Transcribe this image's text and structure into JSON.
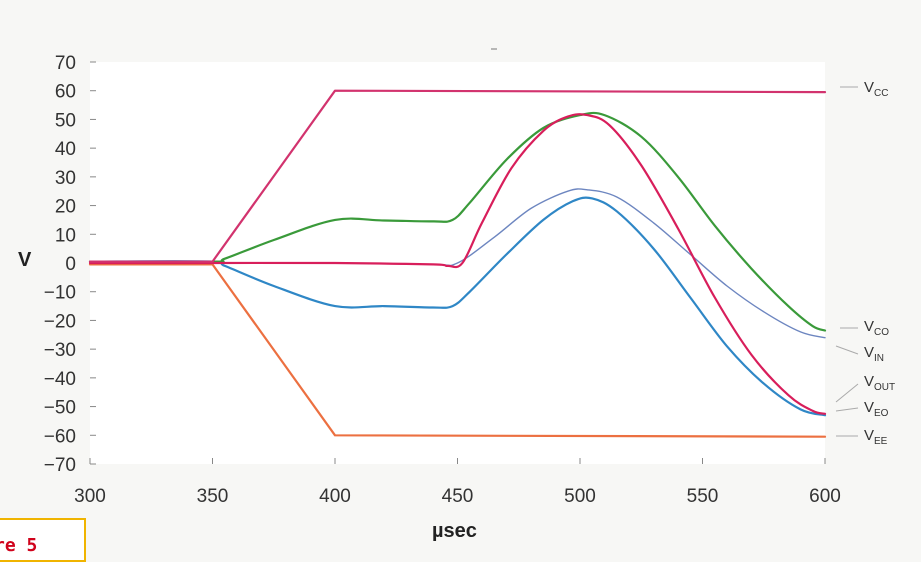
{
  "chart_data": {
    "type": "line",
    "title": "",
    "xlabel": "µsec",
    "ylabel": "V",
    "xlim": [
      300,
      600
    ],
    "ylim": [
      -70,
      70
    ],
    "x_ticks": [
      "300",
      "350",
      "400",
      "450",
      "500",
      "550",
      "600"
    ],
    "y_ticks": [
      "70",
      "60",
      "50",
      "40",
      "30",
      "20",
      "10",
      "0",
      "−10",
      "−20",
      "−30",
      "−40",
      "−50",
      "−60",
      "−70"
    ],
    "grid": false,
    "legend": "right, inline labels",
    "series": [
      {
        "name": "VCC",
        "label_main": "V",
        "label_sub": "CC",
        "color": "#d2336e",
        "points": [
          [
            300,
            0.5
          ],
          [
            350,
            0.5
          ],
          [
            400,
            60
          ],
          [
            600,
            59.5
          ]
        ]
      },
      {
        "name": "VCO",
        "label_main": "V",
        "label_sub": "CO",
        "color": "#3a9a3a",
        "points": [
          [
            300,
            0.5
          ],
          [
            350,
            0.5
          ],
          [
            355,
            1.5
          ],
          [
            375,
            8
          ],
          [
            400,
            15
          ],
          [
            420,
            14.8
          ],
          [
            440,
            14.5
          ],
          [
            448,
            15
          ],
          [
            455,
            21
          ],
          [
            470,
            36
          ],
          [
            485,
            47
          ],
          [
            500,
            51.5
          ],
          [
            510,
            51.5
          ],
          [
            525,
            44
          ],
          [
            540,
            30
          ],
          [
            555,
            13
          ],
          [
            570,
            -2
          ],
          [
            585,
            -15
          ],
          [
            595,
            -22
          ],
          [
            600,
            -23.5
          ]
        ]
      },
      {
        "name": "VIN",
        "label_main": "V",
        "label_sub": "IN",
        "color": "#6d86c0",
        "points": [
          [
            300,
            0.5
          ],
          [
            350,
            0
          ],
          [
            400,
            0
          ],
          [
            440,
            -0.5
          ],
          [
            450,
            0
          ],
          [
            465,
            9
          ],
          [
            480,
            19
          ],
          [
            495,
            25
          ],
          [
            503,
            25.5
          ],
          [
            515,
            23
          ],
          [
            530,
            14
          ],
          [
            545,
            3
          ],
          [
            560,
            -8
          ],
          [
            575,
            -17
          ],
          [
            590,
            -24
          ],
          [
            600,
            -26
          ]
        ]
      },
      {
        "name": "VOUT",
        "label_main": "V",
        "label_sub": "OUT",
        "color": "#d81e5b",
        "points": [
          [
            300,
            0
          ],
          [
            350,
            0
          ],
          [
            400,
            0
          ],
          [
            440,
            -0.5
          ],
          [
            446,
            -1
          ],
          [
            452,
            0
          ],
          [
            460,
            14
          ],
          [
            472,
            33
          ],
          [
            485,
            46
          ],
          [
            495,
            51
          ],
          [
            503,
            51.5
          ],
          [
            512,
            48
          ],
          [
            525,
            34
          ],
          [
            540,
            12
          ],
          [
            555,
            -12
          ],
          [
            570,
            -32
          ],
          [
            585,
            -46
          ],
          [
            595,
            -51.5
          ],
          [
            600,
            -52.5
          ]
        ]
      },
      {
        "name": "VEO",
        "label_main": "V",
        "label_sub": "EO",
        "color": "#2f87c6",
        "points": [
          [
            300,
            0.5
          ],
          [
            350,
            0.5
          ],
          [
            355,
            -1
          ],
          [
            375,
            -8
          ],
          [
            400,
            -15
          ],
          [
            420,
            -15
          ],
          [
            440,
            -15.5
          ],
          [
            448,
            -15
          ],
          [
            455,
            -10
          ],
          [
            470,
            3
          ],
          [
            485,
            15
          ],
          [
            497,
            21.5
          ],
          [
            505,
            22.5
          ],
          [
            515,
            18
          ],
          [
            530,
            5
          ],
          [
            545,
            -12
          ],
          [
            560,
            -29
          ],
          [
            575,
            -42
          ],
          [
            590,
            -51
          ],
          [
            600,
            -53
          ]
        ]
      },
      {
        "name": "VEE",
        "label_main": "V",
        "label_sub": "EE",
        "color": "#ec7041",
        "points": [
          [
            300,
            -0.5
          ],
          [
            350,
            -0.5
          ],
          [
            400,
            -60
          ],
          [
            600,
            -60.5
          ]
        ]
      }
    ]
  },
  "page": {
    "figure_tab": "re 5"
  }
}
